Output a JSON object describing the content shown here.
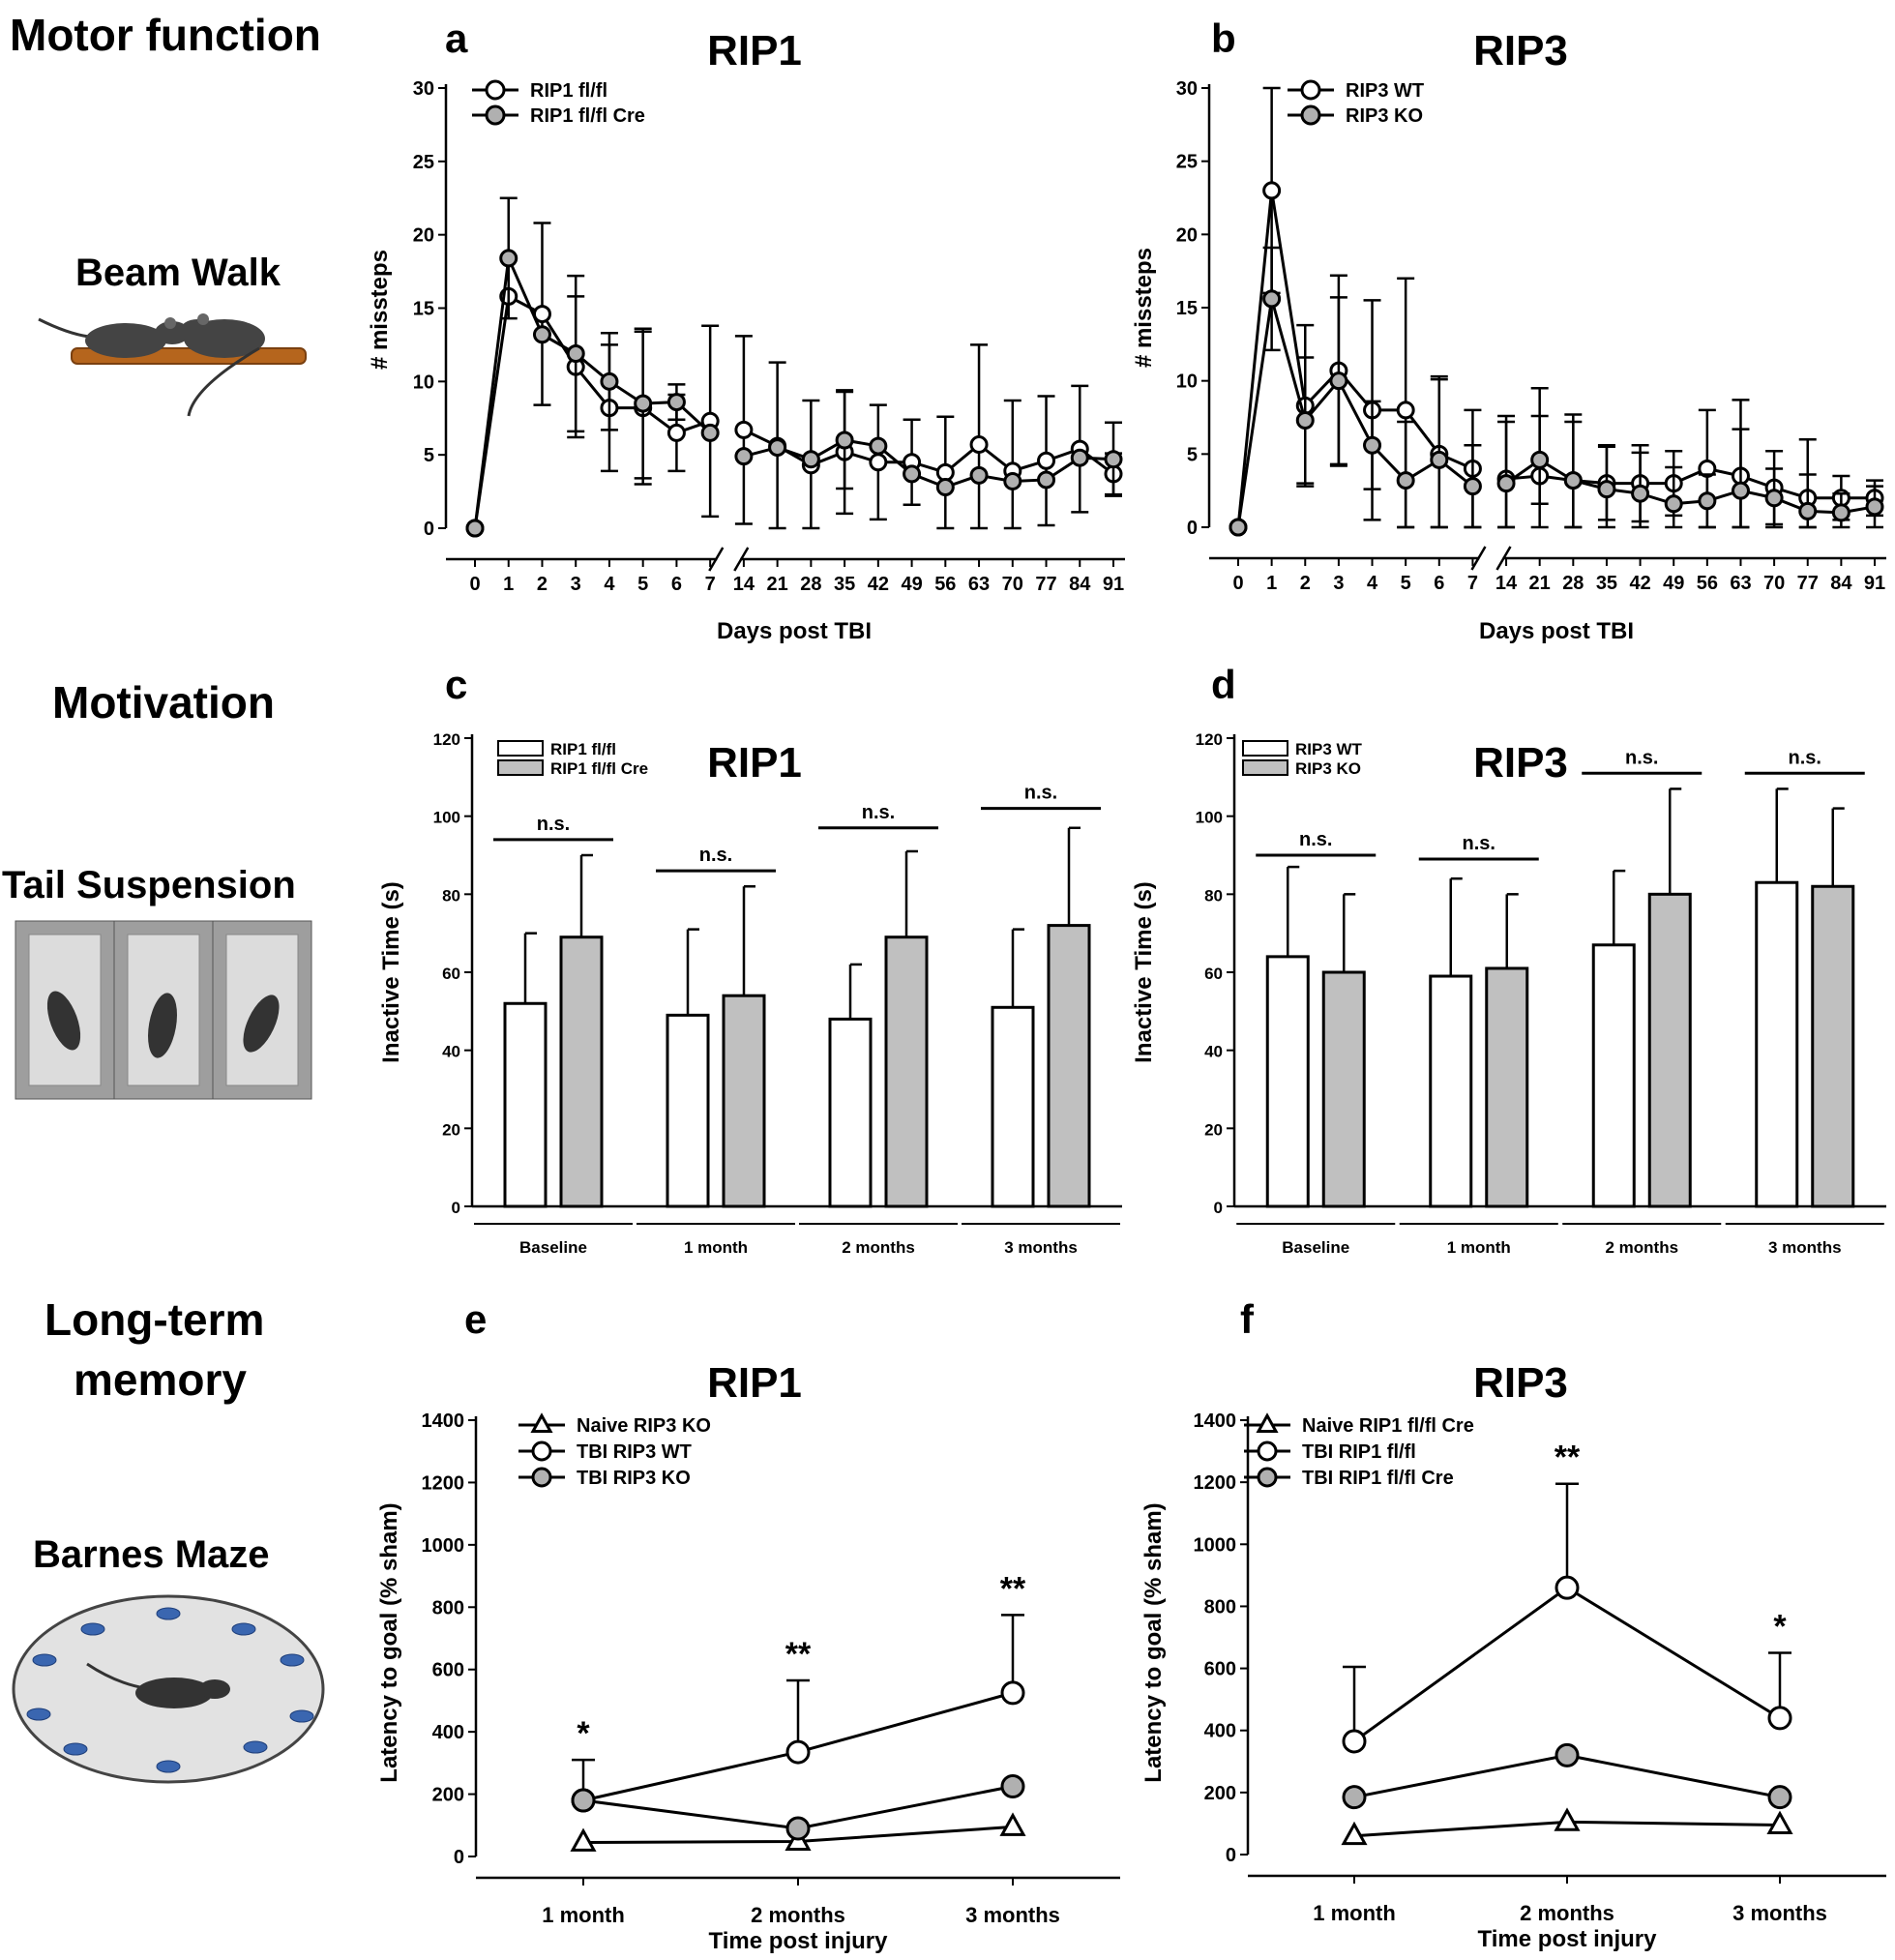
{
  "row_labels": {
    "motor": "Motor function",
    "beam": "Beam Walk",
    "motivation": "Motivation",
    "tail": "Tail Suspension",
    "memory_line1": "Long-term",
    "memory_line2": "memory",
    "barnes": "Barnes Maze"
  },
  "chart_data": [
    {
      "id": "a",
      "letter": "a",
      "type": "line",
      "title": "RIP1",
      "xlabel": "Days post TBI",
      "ylabel": "# missteps",
      "categories": [
        "0",
        "1",
        "2",
        "3",
        "4",
        "5",
        "6",
        "7",
        "14",
        "21",
        "28",
        "35",
        "42",
        "49",
        "56",
        "63",
        "70",
        "77",
        "84",
        "91"
      ],
      "ylim": [
        0,
        30
      ],
      "yticks": [
        0,
        5,
        10,
        15,
        20,
        25,
        30
      ],
      "axis_break": "between 7 and 14",
      "series": [
        {
          "name": "RIP1 fl/fl",
          "marker": "circle",
          "fill": "#ffffff",
          "values": [
            0,
            15.8,
            14.6,
            11.0,
            8.2,
            8.2,
            6.5,
            7.3,
            6.7,
            5.6,
            4.3,
            5.2,
            4.5,
            4.5,
            3.8,
            5.7,
            3.9,
            4.6,
            5.4,
            3.7
          ],
          "errors": [
            0,
            0,
            6.2,
            4.8,
            4.3,
            5.2,
            2.6,
            6.5,
            6.4,
            5.7,
            4.4,
            4.2,
            3.9,
            2.9,
            3.8,
            6.8,
            4.8,
            4.4,
            4.3,
            1.4
          ]
        },
        {
          "name": "RIP1 fl/fl Cre",
          "marker": "circle",
          "fill": "#b0b0b0",
          "values": [
            0,
            18.4,
            13.2,
            11.9,
            10.0,
            8.5,
            8.6,
            6.5,
            4.9,
            5.5,
            4.7,
            6.0,
            5.6,
            3.7,
            2.8,
            3.6,
            3.2,
            3.3,
            4.8,
            4.7
          ],
          "errors": [
            0,
            4.1,
            0,
            5.3,
            3.3,
            5.1,
            1.2,
            0,
            0,
            0,
            0,
            3.3,
            0,
            0,
            0,
            0,
            0,
            0,
            0,
            2.5
          ]
        }
      ]
    },
    {
      "id": "b",
      "letter": "b",
      "type": "line",
      "title": "RIP3",
      "xlabel": "Days post TBI",
      "ylabel": "# missteps",
      "categories": [
        "0",
        "1",
        "2",
        "3",
        "4",
        "5",
        "6",
        "7",
        "14",
        "21",
        "28",
        "35",
        "42",
        "49",
        "56",
        "63",
        "70",
        "77",
        "84",
        "91"
      ],
      "ylim": [
        0,
        30
      ],
      "yticks": [
        0,
        5,
        10,
        15,
        20,
        25,
        30
      ],
      "axis_break": "between 7 and 14",
      "series": [
        {
          "name": "RIP3 WT",
          "marker": "circle",
          "fill": "#ffffff",
          "values": [
            0,
            23.0,
            8.3,
            10.7,
            8.0,
            8.0,
            5.0,
            4.0,
            3.3,
            3.5,
            3.2,
            3.0,
            3.0,
            3.0,
            4.0,
            3.5,
            2.7,
            2.0,
            2.0,
            2.0
          ],
          "errors": [
            0,
            7.0,
            5.5,
            6.5,
            7.5,
            9.0,
            5.3,
            4.0,
            4.3,
            6.0,
            4.5,
            2.5,
            2.6,
            2.2,
            4.0,
            5.2,
            2.5,
            4.0,
            1.5,
            1.2
          ]
        },
        {
          "name": "RIP3 KO",
          "marker": "circle",
          "fill": "#b0b0b0",
          "values": [
            0,
            15.6,
            7.3,
            10.0,
            5.6,
            3.2,
            4.6,
            2.8,
            3.0,
            4.6,
            3.2,
            2.6,
            2.3,
            1.6,
            1.8,
            2.5,
            2.0,
            1.1,
            1.0,
            1.4
          ],
          "errors": [
            0,
            3.5,
            4.3,
            5.7,
            3.0,
            4.0,
            5.5,
            2.8,
            4.2,
            3.0,
            4.0,
            3.0,
            2.8,
            2.5,
            1.8,
            4.2,
            2.0,
            2.5,
            1.3,
            1.4
          ]
        }
      ]
    },
    {
      "id": "c",
      "letter": "c",
      "type": "bar",
      "title": "RIP1",
      "xlabel": "",
      "ylabel": "Inactive Time (s)",
      "categories": [
        "Baseline",
        "1 month",
        "2 months",
        "3 months"
      ],
      "ylim": [
        0,
        120
      ],
      "yticks": [
        0,
        20,
        40,
        60,
        80,
        100,
        120
      ],
      "annotations": [
        "n.s.",
        "n.s.",
        "n.s.",
        "n.s."
      ],
      "annotation_level": [
        94,
        86,
        97,
        102
      ],
      "series": [
        {
          "name": "RIP1 fl/fl",
          "fill": "#ffffff",
          "values": [
            52,
            49,
            48,
            51
          ],
          "errors": [
            18,
            22,
            14,
            20
          ]
        },
        {
          "name": "RIP1 fl/fl Cre",
          "fill": "#c0c0c0",
          "values": [
            69,
            54,
            69,
            72
          ],
          "errors": [
            21,
            28,
            22,
            25
          ]
        }
      ]
    },
    {
      "id": "d",
      "letter": "d",
      "type": "bar",
      "title": "RIP3",
      "xlabel": "",
      "ylabel": "Inactive Time (s)",
      "categories": [
        "Baseline",
        "1 month",
        "2 months",
        "3 months"
      ],
      "ylim": [
        0,
        120
      ],
      "yticks": [
        0,
        20,
        40,
        60,
        80,
        100,
        120
      ],
      "annotations": [
        "n.s.",
        "n.s.",
        "n.s.",
        "n.s."
      ],
      "annotation_level": [
        90,
        89,
        111,
        111
      ],
      "series": [
        {
          "name": "RIP3 WT",
          "fill": "#ffffff",
          "values": [
            64,
            59,
            67,
            83
          ],
          "errors": [
            23,
            25,
            19,
            24
          ]
        },
        {
          "name": "RIP3 KO",
          "fill": "#c0c0c0",
          "values": [
            60,
            61,
            80,
            82
          ],
          "errors": [
            20,
            19,
            27,
            20
          ]
        }
      ]
    },
    {
      "id": "e",
      "letter": "e",
      "type": "line",
      "title": "RIP1",
      "xlabel": "Time post injury",
      "ylabel": "Latency to goal (% sham)",
      "categories": [
        "1 month",
        "2 months",
        "3 months"
      ],
      "ylim": [
        0,
        1400
      ],
      "yticks": [
        0,
        200,
        400,
        600,
        800,
        1000,
        1200,
        1400
      ],
      "significance": [
        "*",
        "**",
        "**"
      ],
      "series": [
        {
          "name": "Naive RIP3 KO",
          "marker": "triangle",
          "fill": "#ffffff",
          "values": [
            45,
            48,
            95
          ],
          "errors": [
            0,
            0,
            0
          ]
        },
        {
          "name": "TBI RIP3 WT",
          "marker": "circle",
          "fill": "#ffffff",
          "values": [
            180,
            335,
            525
          ],
          "errors": [
            130,
            230,
            250
          ]
        },
        {
          "name": "TBI RIP3 KO",
          "marker": "circle",
          "fill": "#b0b0b0",
          "values": [
            180,
            90,
            225
          ],
          "errors": [
            0,
            0,
            0
          ]
        }
      ]
    },
    {
      "id": "f",
      "letter": "f",
      "type": "line",
      "title": "RIP3",
      "xlabel": "Time post injury",
      "ylabel": "Latency to goal (% sham)",
      "categories": [
        "1 month",
        "2 months",
        "3 months"
      ],
      "ylim": [
        0,
        1400
      ],
      "yticks": [
        0,
        200,
        400,
        600,
        800,
        1000,
        1200,
        1400
      ],
      "significance": [
        "",
        "**",
        "*"
      ],
      "series": [
        {
          "name": "Naive RIP1 fl/fl Cre",
          "marker": "triangle",
          "fill": "#ffffff",
          "values": [
            60,
            105,
            95
          ],
          "errors": [
            0,
            0,
            0
          ]
        },
        {
          "name": "TBI RIP1 fl/fl",
          "marker": "circle",
          "fill": "#ffffff",
          "values": [
            365,
            860,
            440
          ],
          "errors": [
            240,
            335,
            210
          ]
        },
        {
          "name": "TBI RIP1 fl/fl Cre",
          "marker": "circle",
          "fill": "#b0b0b0",
          "values": [
            185,
            320,
            185
          ],
          "errors": [
            0,
            0,
            0
          ]
        }
      ]
    }
  ]
}
